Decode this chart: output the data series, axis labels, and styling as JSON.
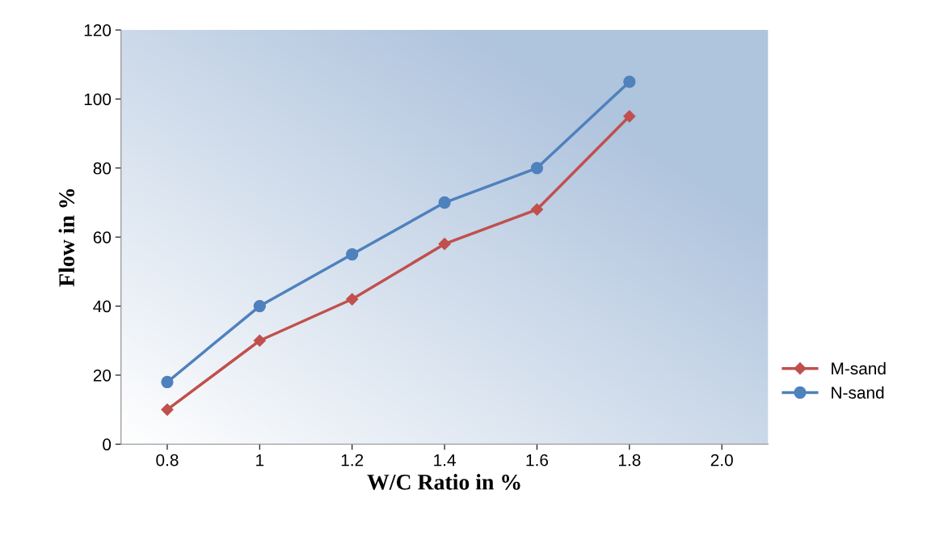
{
  "chart_data": {
    "type": "line",
    "xlabel": "W/C Ratio in %",
    "ylabel": "Flow in %",
    "categories": [
      "0.8",
      "1",
      "1.2",
      "1.4",
      "1.6",
      "1.8",
      "2.0"
    ],
    "series": [
      {
        "name": "M-sand",
        "color": "#c0504d",
        "marker": "diamond",
        "values": [
          10,
          30,
          42,
          58,
          68,
          95,
          null
        ]
      },
      {
        "name": "N-sand",
        "color": "#4f81bd",
        "marker": "circle",
        "values": [
          18,
          40,
          55,
          70,
          80,
          105,
          null
        ]
      }
    ],
    "ylim": [
      0,
      120
    ],
    "yticks": [
      0,
      20,
      40,
      60,
      80,
      100,
      120
    ],
    "grid": false,
    "legend": "right",
    "line_style": "solid"
  }
}
